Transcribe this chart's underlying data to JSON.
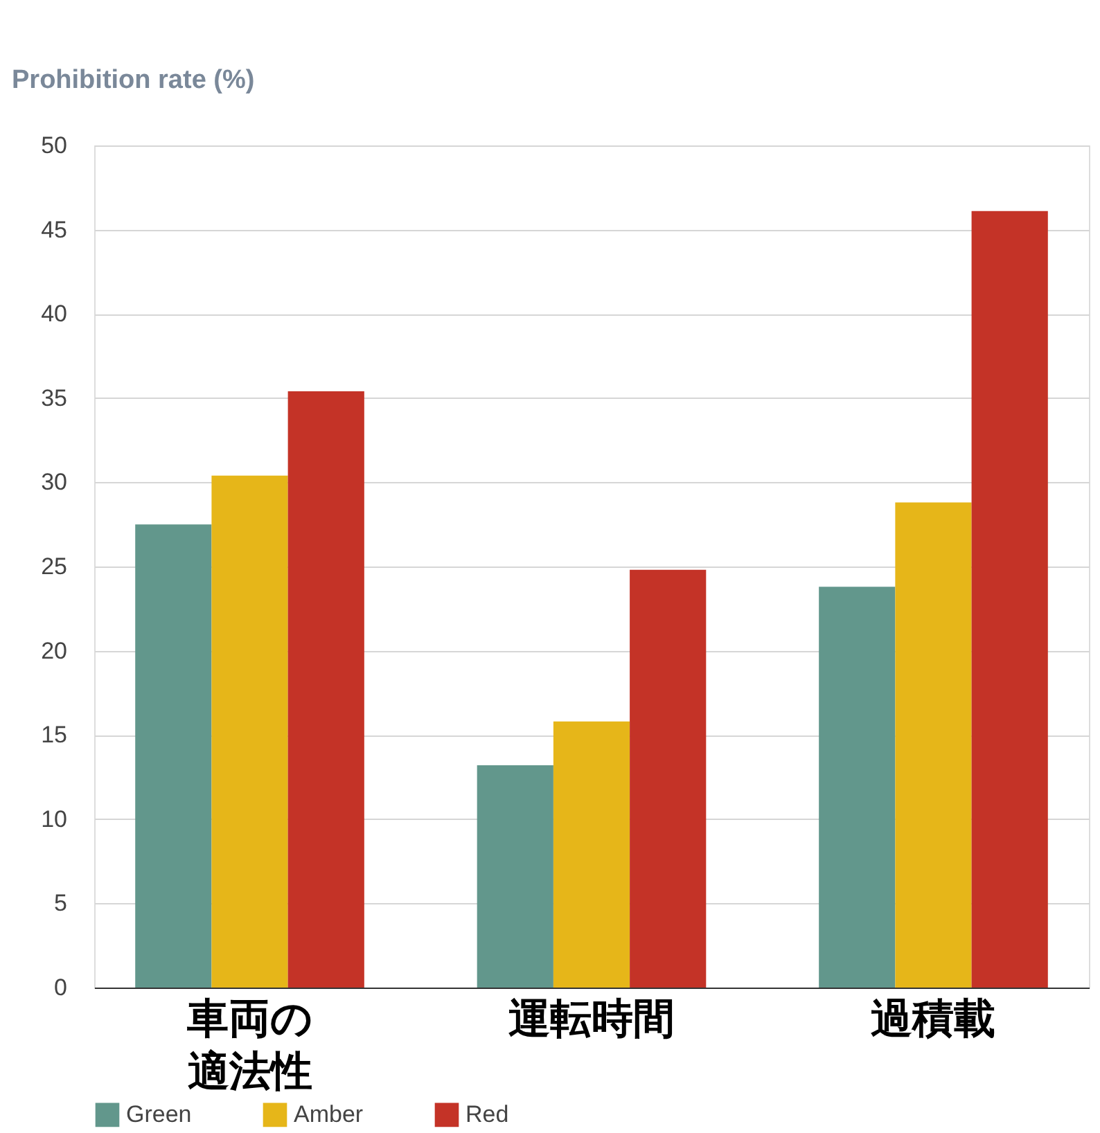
{
  "chart_data": {
    "type": "bar",
    "ylabel": "Prohibition rate (%)",
    "categories": [
      "車両の適法性",
      "運転時間",
      "過積載"
    ],
    "series": [
      {
        "name": "Green",
        "color": "#62978c",
        "values": [
          27.5,
          13.2,
          23.8
        ]
      },
      {
        "name": "Amber",
        "color": "#e6b619",
        "values": [
          30.4,
          15.8,
          28.8
        ]
      },
      {
        "name": "Red",
        "color": "#c43327",
        "values": [
          35.4,
          24.8,
          46.1
        ]
      }
    ],
    "ylim": [
      0,
      50
    ],
    "yticks": [
      0,
      5,
      10,
      15,
      20,
      25,
      30,
      35,
      40,
      45,
      50
    ],
    "grid": "y",
    "legend": "bottom"
  }
}
